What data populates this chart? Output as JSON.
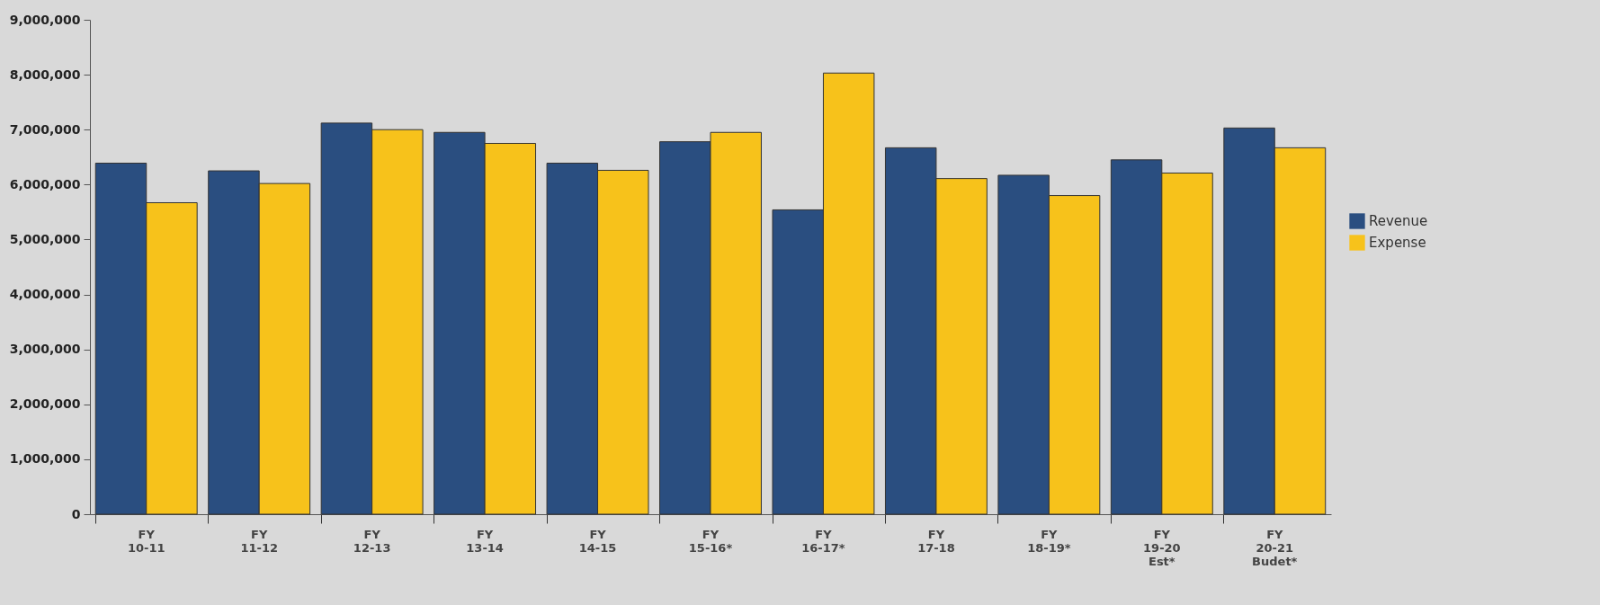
{
  "chart_data": {
    "type": "bar",
    "categories": [
      "FY 10-11",
      "FY 11-12",
      "FY 12-13",
      "FY 13-14",
      "FY 14-15",
      "FY 15-16*",
      "FY 16-17*",
      "FY 17-18",
      "FY 18-19*",
      "FY 19-20 Est*",
      "FY 20-21 Budet*"
    ],
    "series": [
      {
        "name": "Revenue",
        "color": "#2a4e80",
        "values": [
          6390000,
          6250000,
          7120000,
          6950000,
          6390000,
          6780000,
          5540000,
          6670000,
          6170000,
          6450000,
          7030000
        ]
      },
      {
        "name": "Expense",
        "color": "#f7c21b",
        "values": [
          5670000,
          6020000,
          7000000,
          6750000,
          6260000,
          6950000,
          8030000,
          6110000,
          5800000,
          6210000,
          6670000
        ]
      }
    ],
    "ylim": [
      0,
      9000000
    ],
    "yticks": [
      0,
      {
        "value": 1000000,
        "label": "1,000,000"
      },
      {
        "value": 2000000,
        "label": "2,000,000"
      },
      {
        "value": 3000000,
        "label": "3,000,000"
      },
      {
        "value": 4000000,
        "label": "4,000,000"
      },
      {
        "value": 5000000,
        "label": "5,000,000"
      },
      {
        "value": 6000000,
        "label": "6,000,000"
      },
      {
        "value": 7000000,
        "label": "7,000,000"
      },
      {
        "value": 8000000,
        "label": "8,000,000"
      },
      {
        "value": 9000000,
        "label": "9,000,000"
      }
    ],
    "legend": "right"
  }
}
